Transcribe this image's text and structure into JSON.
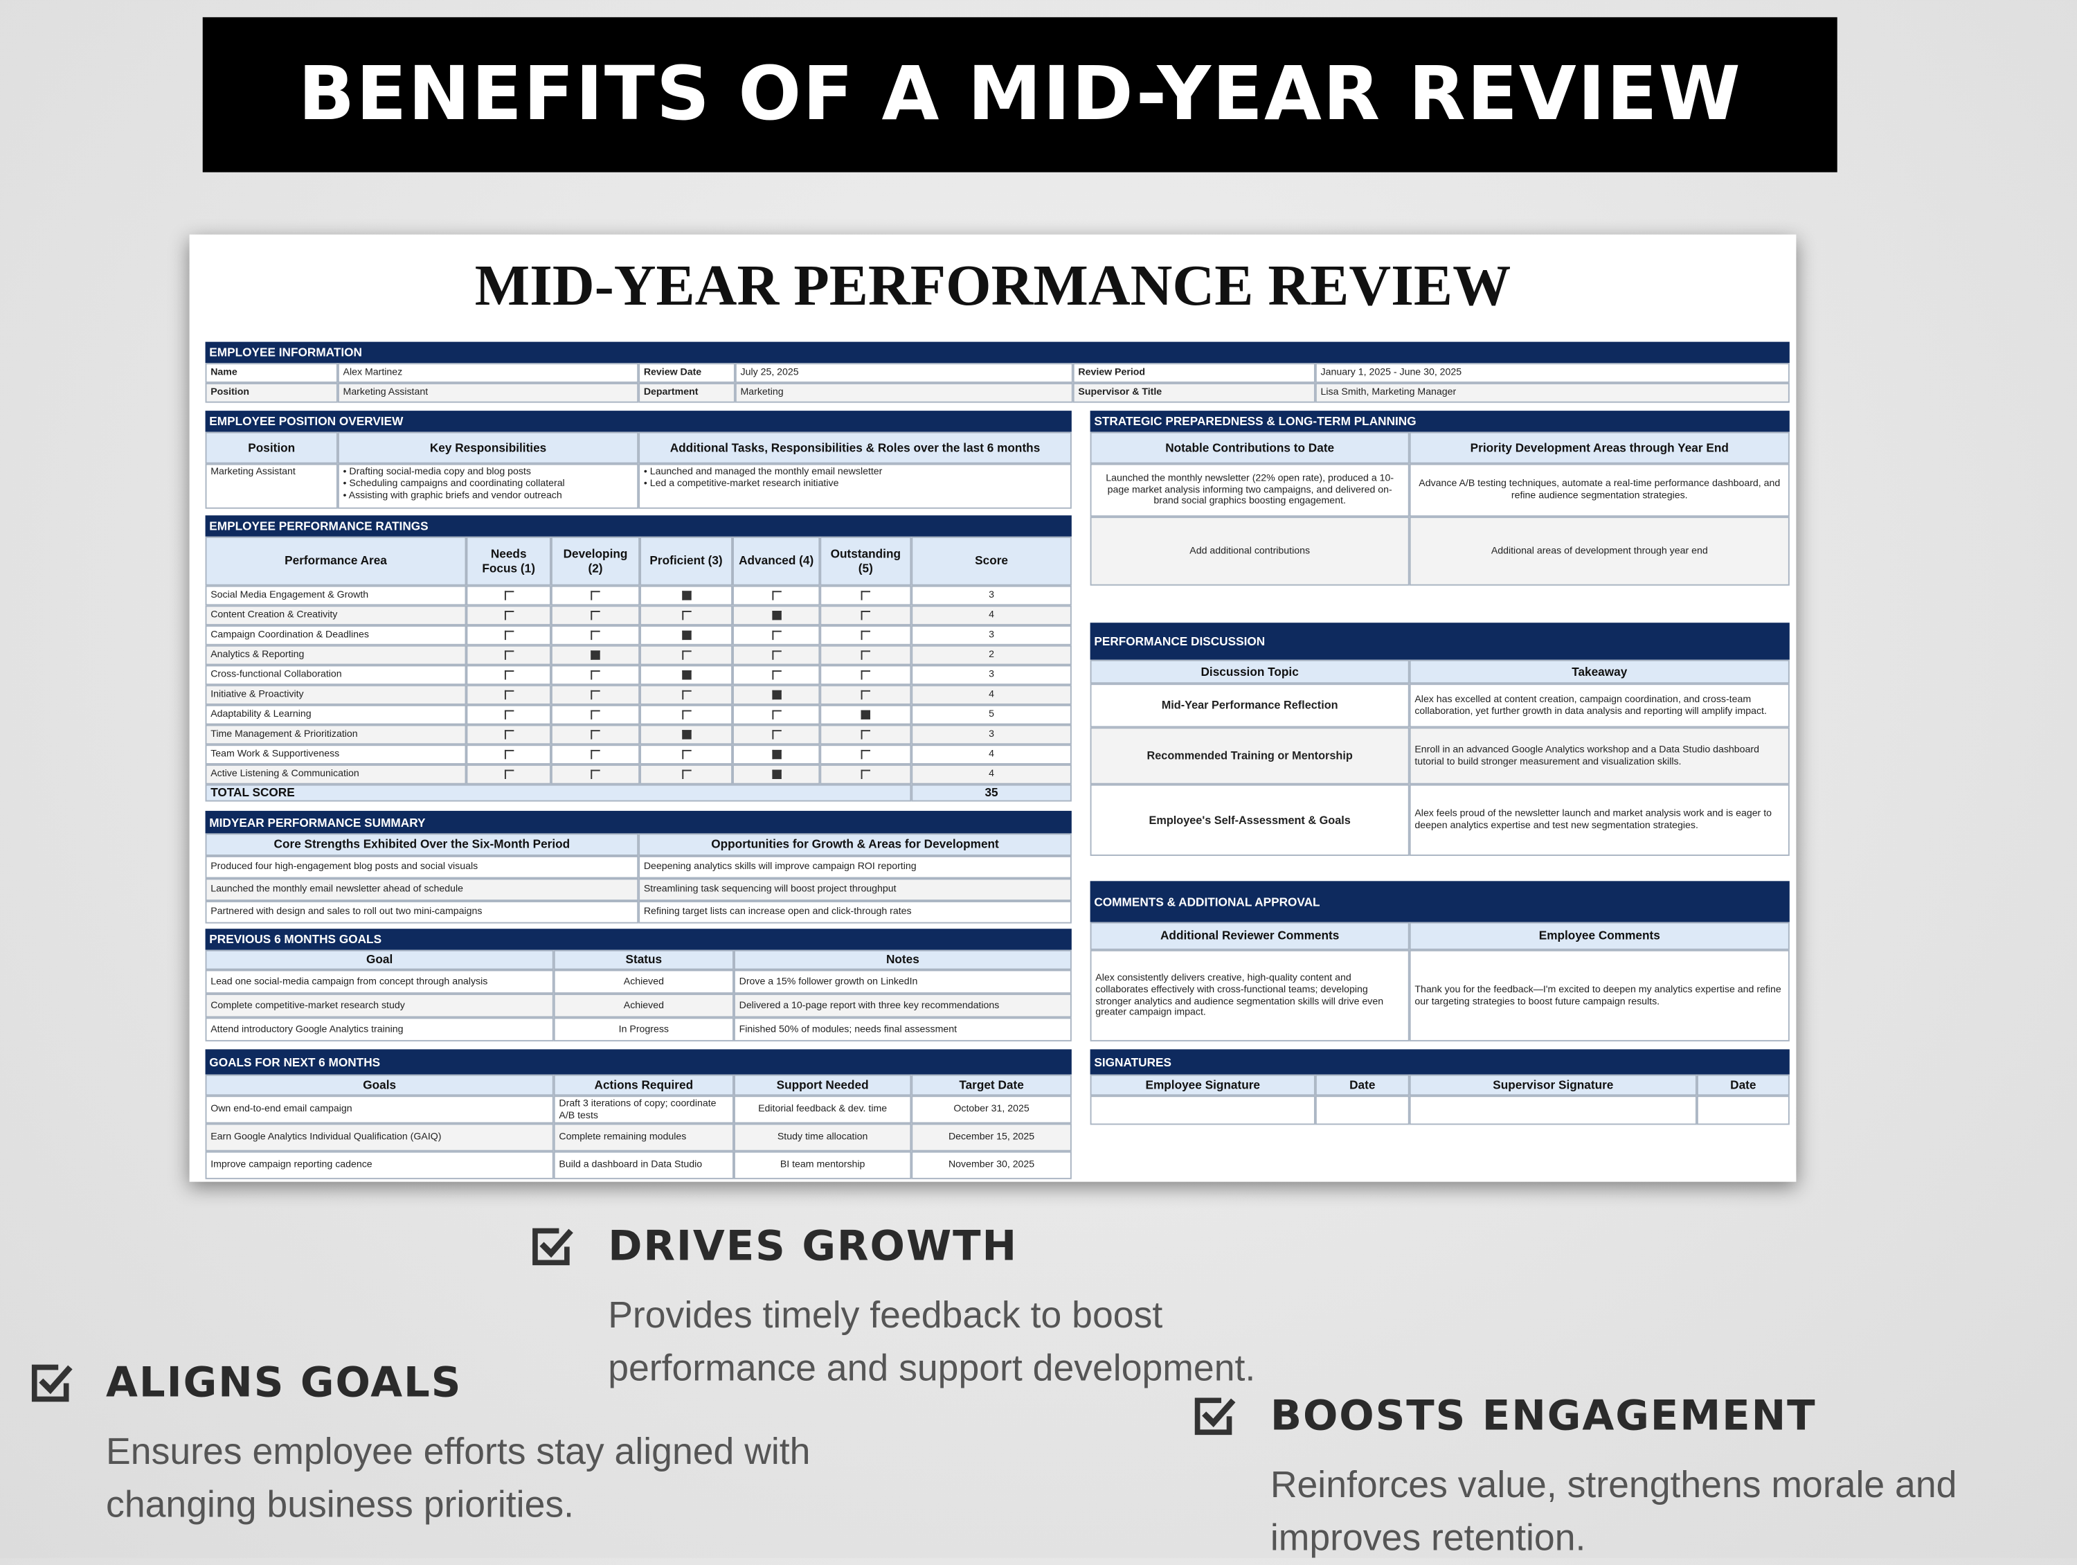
{
  "banner": {
    "title": "BENEFITS OF A MID-YEAR REVIEW"
  },
  "sheet": {
    "title": "MID-YEAR PERFORMANCE REVIEW",
    "employee_information": {
      "heading": "EMPLOYEE INFORMATION",
      "rows": [
        [
          "Name",
          "Alex Martinez",
          "Review Date",
          "July 25, 2025",
          "Review Period",
          "January 1, 2025 - June 30, 2025"
        ],
        [
          "Position",
          "Marketing Assistant",
          "Department",
          "Marketing",
          "Supervisor & Title",
          "Lisa Smith, Marketing Manager"
        ]
      ]
    },
    "position_overview": {
      "heading": "EMPLOYEE POSITION OVERVIEW",
      "columns": [
        "Position",
        "Key Responsibilities",
        "Additional Tasks, Responsibilities & Roles over the last 6 months"
      ],
      "rows": [
        [
          "Marketing Assistant",
          [
            "• Drafting social-media copy and blog posts",
            "• Scheduling campaigns and coordinating collateral",
            "• Assisting with graphic briefs and vendor outreach"
          ],
          [
            "• Launched and managed the monthly email newsletter",
            "• Led a competitive-market research initiative"
          ]
        ]
      ]
    },
    "performance_ratings": {
      "heading": "EMPLOYEE PERFORMANCE RATINGS",
      "columns": [
        "Performance Area",
        "Needs Focus (1)",
        "Developing (2)",
        "Proficient (3)",
        "Advanced (4)",
        "Outstanding (5)",
        "Score"
      ],
      "rows": [
        {
          "area": "Social Media Engagement & Growth",
          "score": 3
        },
        {
          "area": "Content Creation & Creativity",
          "score": 4
        },
        {
          "area": "Campaign Coordination & Deadlines",
          "score": 3
        },
        {
          "area": "Analytics & Reporting",
          "score": 2
        },
        {
          "area": "Cross-functional Collaboration",
          "score": 3
        },
        {
          "area": "Initiative & Proactivity",
          "score": 4
        },
        {
          "area": "Adaptability & Learning",
          "score": 5
        },
        {
          "area": "Time Management & Prioritization",
          "score": 3
        },
        {
          "area": "Team Work & Supportiveness",
          "score": 4
        },
        {
          "area": "Active Listening & Communication",
          "score": 4
        }
      ],
      "total_label": "TOTAL SCORE",
      "total": 35
    },
    "performance_summary": {
      "heading": "MIDYEAR PERFORMANCE SUMMARY",
      "columns": [
        "Core Strengths Exhibited Over the Six-Month Period",
        "Opportunities for Growth & Areas for Development"
      ],
      "rows": [
        [
          "Produced four high-engagement blog posts and social visuals",
          "Deepening analytics skills will improve campaign ROI reporting"
        ],
        [
          "Launched the monthly email newsletter ahead of schedule",
          "Streamlining task sequencing will boost project throughput"
        ],
        [
          "Partnered with design and sales to roll out two mini-campaigns",
          "Refining target lists can increase open and click-through rates"
        ]
      ]
    },
    "previous_goals": {
      "heading": "PREVIOUS 6 MONTHS GOALS",
      "columns": [
        "Goal",
        "Status",
        "Notes"
      ],
      "rows": [
        [
          "Lead one social-media campaign from concept through analysis",
          "Achieved",
          "Drove a 15% follower growth on LinkedIn"
        ],
        [
          "Complete competitive-market research study",
          "Achieved",
          "Delivered a 10-page report with three key recommendations"
        ],
        [
          "Attend introductory Google Analytics training",
          "In Progress",
          "Finished 50% of modules; needs final assessment"
        ]
      ]
    },
    "next_goals": {
      "heading": "GOALS FOR NEXT 6 MONTHS",
      "columns": [
        "Goals",
        "Actions Required",
        "Support Needed",
        "Target Date"
      ],
      "rows": [
        [
          "Own end-to-end email campaign",
          "Draft 3 iterations of copy; coordinate A/B tests",
          "Editorial feedback & dev. time",
          "October 31, 2025"
        ],
        [
          "Earn Google Analytics Individual Qualification (GAIQ)",
          "Complete remaining modules",
          "Study time allocation",
          "December 15, 2025"
        ],
        [
          "Improve campaign reporting cadence",
          "Build a dashboard in Data Studio",
          "BI team mentorship",
          "November 30, 2025"
        ]
      ]
    },
    "strategic_planning": {
      "heading": "STRATEGIC PREPAREDNESS & LONG-TERM PLANNING",
      "columns": [
        "Notable Contributions to Date",
        "Priority Development Areas through Year End"
      ],
      "rows": [
        [
          "Launched the monthly newsletter (22% open rate), produced a 10-page market analysis informing two campaigns, and delivered on-brand social graphics boosting engagement.",
          "Advance A/B testing techniques, automate a real-time performance dashboard, and refine audience segmentation strategies."
        ],
        [
          "Add additional contributions",
          "Additional areas of development through year end"
        ]
      ]
    },
    "performance_discussion": {
      "heading": "PERFORMANCE DISCUSSION",
      "columns": [
        "Discussion Topic",
        "Takeaway"
      ],
      "rows": [
        [
          "Mid-Year Performance Reflection",
          "Alex has excelled at content creation, campaign coordination, and cross-team collaboration, yet further growth in data analysis and reporting will amplify impact."
        ],
        [
          "Recommended Training or Mentorship",
          "Enroll in an advanced Google Analytics workshop and a Data Studio dashboard tutorial to build stronger measurement and visualization skills."
        ],
        [
          "Employee's Self-Assessment & Goals",
          "Alex feels proud of the newsletter launch and market analysis work and is eager to deepen analytics expertise and test new segmentation strategies."
        ]
      ]
    },
    "comments_approval": {
      "heading": "COMMENTS & ADDITIONAL APPROVAL",
      "columns": [
        "Additional Reviewer Comments",
        "Employee Comments"
      ],
      "rows": [
        [
          "Alex consistently delivers creative, high-quality content and collaborates effectively with cross-functional teams; developing stronger analytics and audience segmentation skills will drive even greater campaign impact.",
          "Thank you for the feedback—I'm excited to deepen my analytics expertise and refine our targeting strategies to boost future campaign results."
        ]
      ]
    },
    "signatures": {
      "heading": "SIGNATURES",
      "columns": [
        "Employee Signature",
        "Date",
        "Supervisor Signature",
        "Date"
      ]
    }
  },
  "benefits": [
    {
      "title": "DRIVES GROWTH",
      "lines": [
        "Provides timely feedback to boost",
        "performance and support development."
      ]
    },
    {
      "title": "ALIGNS GOALS",
      "lines": [
        "Ensures employee efforts stay aligned with",
        "changing business priorities."
      ]
    },
    {
      "title": "BOOSTS ENGAGEMENT",
      "lines": [
        "Reinforces value, strengthens morale and",
        "improves retention."
      ]
    }
  ]
}
